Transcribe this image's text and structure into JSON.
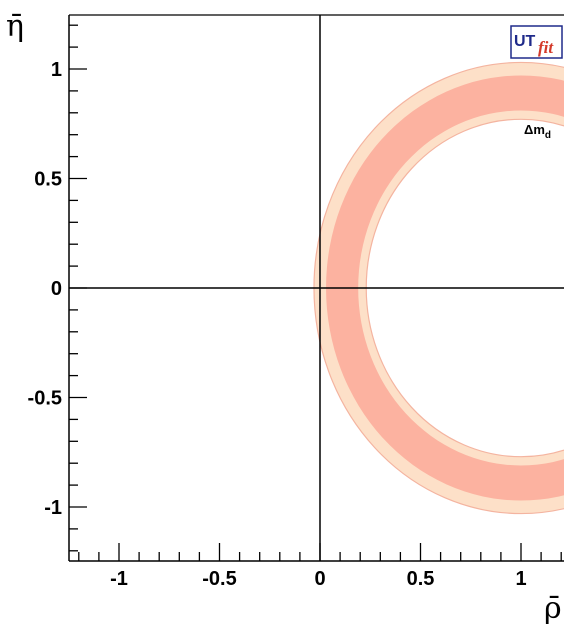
{
  "chart_data": {
    "type": "contour",
    "xlabel": "ρ̄",
    "ylabel": "η̄",
    "xlim": [
      -1.25,
      1.22
    ],
    "ylim": [
      -1.25,
      1.25
    ],
    "x_ticks": [
      -1,
      -0.5,
      0,
      0.5,
      1
    ],
    "x_tick_labels": [
      "-1",
      "-0.5",
      "0",
      "0.5",
      "1"
    ],
    "y_ticks": [
      -1,
      -0.5,
      0,
      0.5,
      1
    ],
    "y_tick_labels": [
      "-1",
      "-0.5",
      "0",
      "0.5",
      "1"
    ],
    "constraint": {
      "label": "Δm",
      "label_subscript": "d",
      "label_position": [
        1.0,
        0.72
      ],
      "center": [
        1.0,
        0.0
      ],
      "outer_band_radii": [
        0.77,
        1.03
      ],
      "inner_band_radii": [
        0.81,
        0.97
      ],
      "outer_band_color": "#fde0c8",
      "outer_band_edge_color": "#f4b4a0",
      "inner_band_color": "#fcb2a0"
    },
    "axes_lines": [
      "x=0",
      "y=0"
    ],
    "grid": false
  },
  "logo": {
    "text_main": "UT",
    "text_sub": "fit"
  }
}
